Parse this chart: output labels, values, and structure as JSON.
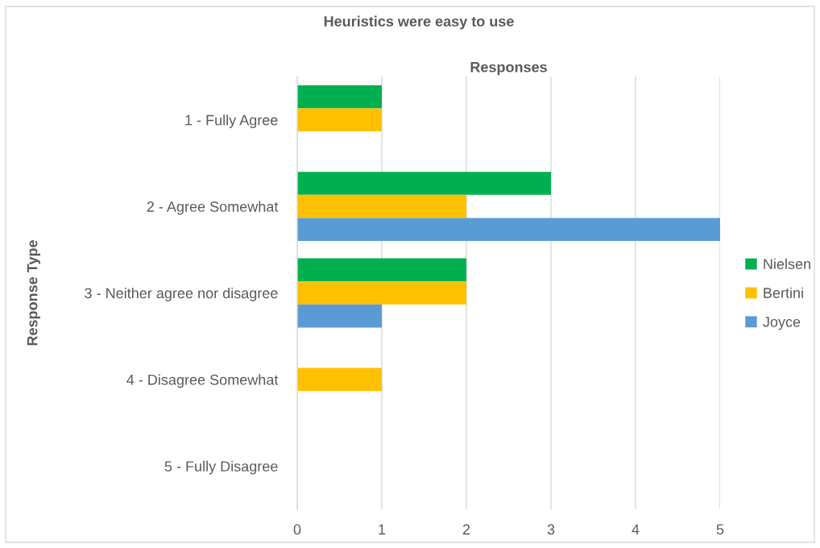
{
  "chart_data": {
    "type": "bar",
    "orientation": "horizontal",
    "title": "Heuristics were easy to use",
    "xlabel": "Responses",
    "ylabel": "Response Type",
    "categories": [
      "1 - Fully Agree",
      "2 - Agree Somewhat",
      "3 - Neither agree nor disagree",
      "4 - Disagree Somewhat",
      "5 - Fully Disagree"
    ],
    "series": [
      {
        "name": "Nielsen",
        "color": "#00b050",
        "values": [
          1,
          3,
          2,
          0,
          0
        ]
      },
      {
        "name": "Bertini",
        "color": "#ffc000",
        "values": [
          1,
          2,
          2,
          1,
          0
        ]
      },
      {
        "name": "Joyce",
        "color": "#5b9bd5",
        "values": [
          0,
          5,
          1,
          0,
          0
        ]
      }
    ],
    "xlim": [
      0,
      5
    ],
    "xticks": [
      0,
      1,
      2,
      3,
      4,
      5
    ],
    "grid": "x",
    "legend": "right"
  }
}
